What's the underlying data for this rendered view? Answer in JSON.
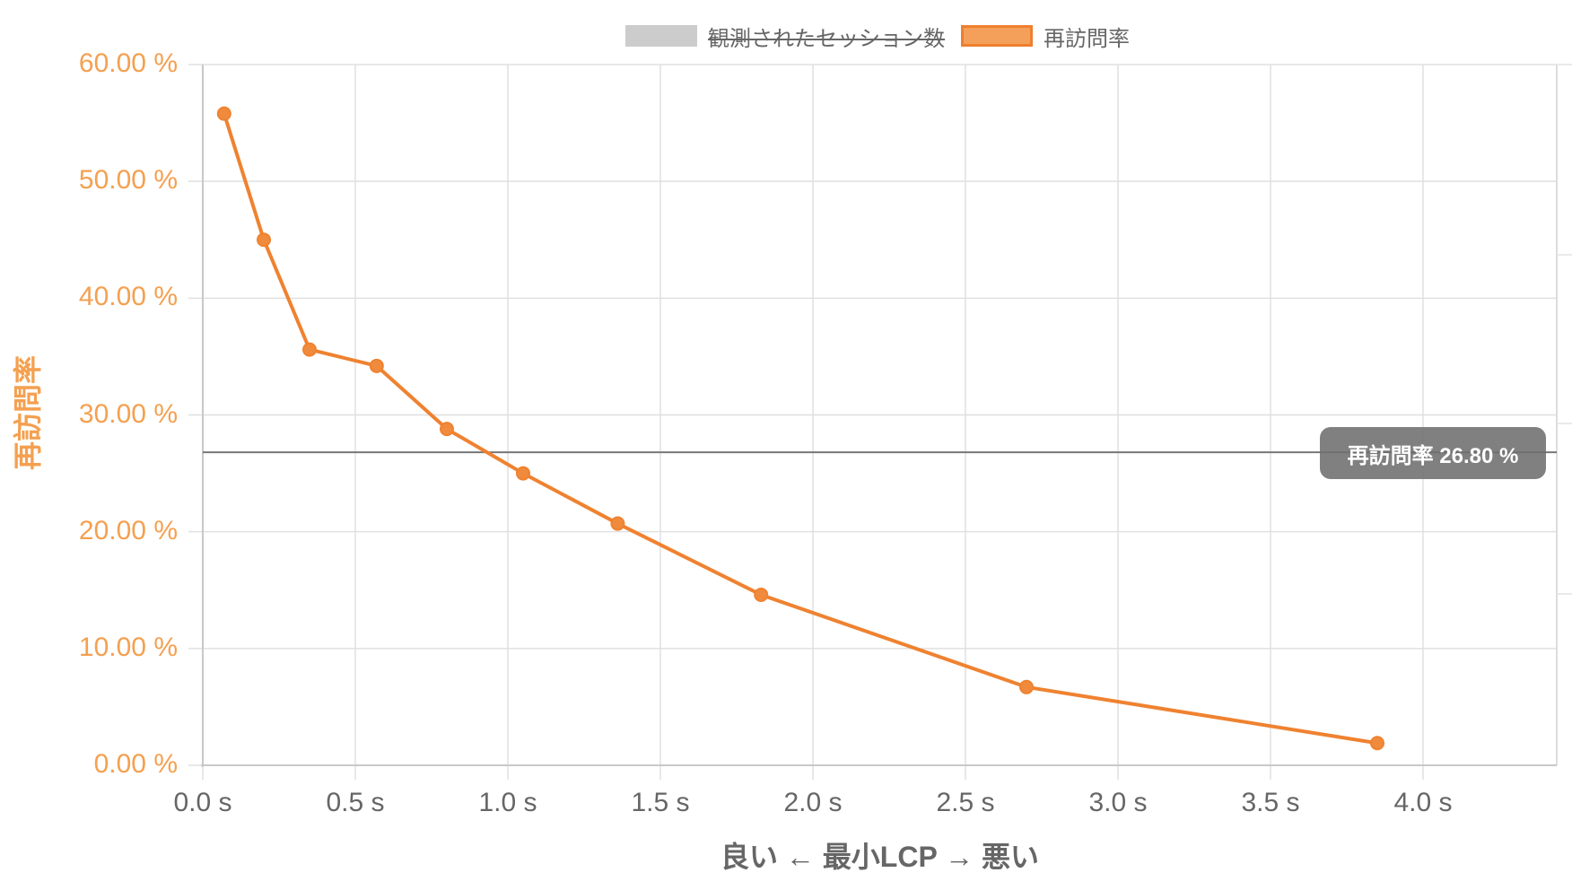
{
  "legend": {
    "items": [
      {
        "label": "観測されたセッション数",
        "hidden": true,
        "fill": "#cccccc",
        "border": "#cccccc"
      },
      {
        "label": "再訪問率",
        "hidden": false,
        "fill": "#f4a05a",
        "border": "#ef7f2e"
      }
    ]
  },
  "axes": {
    "y_title": "再訪問率",
    "x_title": "良い ← 最小LCP → 悪い",
    "y_ticks": [
      "60.00 %",
      "50.00 %",
      "40.00 %",
      "30.00 %",
      "20.00 %",
      "10.00 %",
      "0.00 %"
    ],
    "x_ticks": [
      "0.0 s",
      "0.5 s",
      "1.0 s",
      "1.5 s",
      "2.0 s",
      "2.5 s",
      "3.0 s",
      "3.5 s",
      "4.0 s"
    ]
  },
  "annotation": {
    "label": "再訪問率 26.80 %",
    "value": 26.8
  },
  "colors": {
    "series": "#ef8230",
    "y_axis_text": "#f4a050",
    "axis_text": "#666666",
    "grid": "#e0e0e0",
    "reference_line": "#777777"
  },
  "chart_data": {
    "type": "line",
    "title": "",
    "xlabel": "良い ← 最小LCP → 悪い",
    "ylabel": "再訪問率",
    "xlim": [
      0,
      4.45
    ],
    "ylim": [
      0,
      60
    ],
    "x_unit": "s",
    "y_unit": "%",
    "grid": true,
    "legend_position": "top",
    "legend": [
      "観測されたセッション数",
      "再訪問率"
    ],
    "series": [
      {
        "name": "再訪問率",
        "x": [
          0.07,
          0.2,
          0.35,
          0.57,
          0.8,
          1.05,
          1.36,
          1.83,
          2.7,
          3.85
        ],
        "values": [
          55.8,
          45.0,
          35.6,
          34.2,
          28.8,
          25.0,
          20.7,
          14.6,
          6.7,
          1.9
        ]
      },
      {
        "name": "観測されたセッション数",
        "hidden": true,
        "x": [],
        "values": []
      }
    ],
    "annotations": [
      {
        "type": "horizontal_line",
        "y": 26.8,
        "label": "再訪問率 26.80 %"
      }
    ]
  }
}
